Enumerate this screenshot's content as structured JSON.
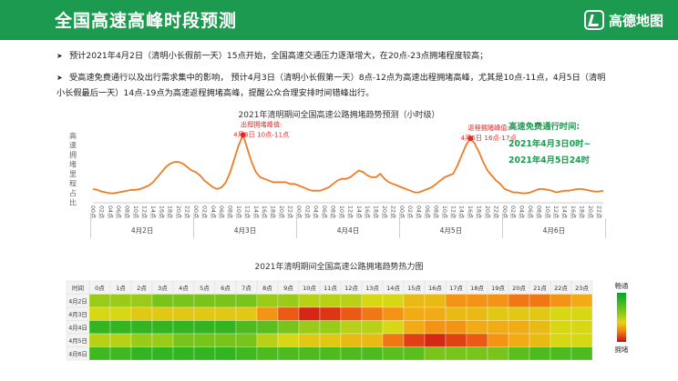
{
  "page": {
    "title": "全国高速高峰时段预测",
    "brand": "高德地图",
    "bullets": [
      "预计2021年4月2日（清明小长假前一天）15点开始，全国高速交通压力逐渐增大，在20点-23点拥堵程度较高；",
      "受高速免费通行以及出行需求集中的影响， 预计4月3日（清明小长假第一天）8点-12点为高速出程拥堵高峰，尤其是10点-11点，4月5日（清明",
      "小长假最后一天）14点-19点为高速返程拥堵高峰，提醒公众合理安排时间错峰出行。"
    ],
    "free_pass_note": [
      "高速免费通行时间:",
      "2021年4月3日0时~",
      "2021年4月5日24时"
    ]
  },
  "colors": {
    "header": "#1b9a50",
    "line": "#ef7b24",
    "peak_label": "#e02a2a",
    "note": "#1b9a50"
  },
  "chart_data": [
    {
      "type": "line",
      "title": "2021年清明期间全国高速公路拥堵趋势预测（小时级）",
      "ylabel": "高速拥堵里程占比",
      "x_tick_labels": [
        "00点",
        "02点",
        "04点",
        "06点",
        "08点",
        "10点",
        "12点",
        "14点",
        "16点",
        "18点",
        "20点",
        "22点"
      ],
      "date_groups": [
        "4月2日",
        "4月3日",
        "4月4日",
        "4月5日",
        "4月6日"
      ],
      "series": [
        {
          "values": [
            [
              6,
              5.5,
              4.5,
              4,
              3.5,
              3.5,
              4,
              4.5,
              5,
              5.5,
              5.5,
              6,
              7,
              8,
              10,
              13,
              16,
              19,
              21,
              22,
              22,
              21,
              19,
              17
            ],
            [
              16,
              14,
              11,
              9,
              7,
              6,
              7,
              10,
              16,
              24,
              32,
              38,
              30,
              22,
              16,
              13,
              12,
              11,
              10,
              10,
              10,
              10,
              9,
              9
            ],
            [
              8,
              7,
              6,
              5,
              5,
              5,
              6,
              7,
              9,
              11,
              12,
              12,
              13,
              15,
              17,
              16,
              14,
              13,
              13,
              15,
              12,
              10,
              9,
              8
            ],
            [
              7,
              6,
              5,
              4,
              4,
              5,
              6,
              7,
              9,
              11,
              13,
              14,
              15,
              20,
              26,
              32,
              36,
              33,
              28,
              22,
              17,
              14,
              11,
              9
            ],
            [
              6,
              5,
              4,
              4,
              3.5,
              3.5,
              4,
              5,
              6,
              6,
              5.5,
              5,
              4,
              4.5,
              5,
              5,
              5.5,
              6,
              6,
              5.5,
              5,
              4.5,
              4.5,
              5
            ]
          ]
        }
      ],
      "peak_annotations": [
        {
          "title": "出程拥堵峰值:",
          "text": "4月3日  10点-11点"
        },
        {
          "title": "返程拥堵峰值:",
          "text": "4月5日  16点-17点"
        }
      ]
    },
    {
      "type": "heatmap",
      "title": "2021年清明期间全国高速公路拥堵趋势热力图",
      "corner_label": "时间",
      "columns": [
        "0点",
        "1点",
        "2点",
        "3点",
        "4点",
        "5点",
        "6点",
        "7点",
        "8点",
        "9点",
        "10点",
        "11点",
        "12点",
        "13点",
        "14点",
        "15点",
        "16点",
        "17点",
        "18点",
        "19点",
        "20点",
        "21点",
        "22点",
        "23点"
      ],
      "rows": [
        "4月2日",
        "4月3日",
        "4月4日",
        "4月5日",
        "4月6日"
      ],
      "values": [
        [
          0.45,
          0.45,
          0.45,
          0.4,
          0.4,
          0.4,
          0.4,
          0.4,
          0.45,
          0.45,
          0.5,
          0.5,
          0.5,
          0.55,
          0.55,
          0.65,
          0.65,
          0.75,
          0.75,
          0.75,
          0.8,
          0.8,
          0.75,
          0.7
        ],
        [
          0.55,
          0.55,
          0.6,
          0.6,
          0.6,
          0.6,
          0.6,
          0.6,
          0.75,
          0.85,
          0.95,
          0.92,
          0.85,
          0.8,
          0.75,
          0.7,
          0.7,
          0.65,
          0.65,
          0.6,
          0.6,
          0.6,
          0.55,
          0.55
        ],
        [
          0.2,
          0.2,
          0.2,
          0.2,
          0.2,
          0.2,
          0.2,
          0.3,
          0.35,
          0.4,
          0.45,
          0.45,
          0.5,
          0.5,
          0.55,
          0.7,
          0.75,
          0.75,
          0.7,
          0.7,
          0.7,
          0.65,
          0.55,
          0.55
        ],
        [
          0.5,
          0.5,
          0.45,
          0.45,
          0.4,
          0.4,
          0.4,
          0.4,
          0.5,
          0.55,
          0.6,
          0.6,
          0.65,
          0.65,
          0.8,
          0.9,
          0.95,
          0.9,
          0.85,
          0.75,
          0.7,
          0.65,
          0.55,
          0.55
        ],
        [
          0.25,
          0.25,
          0.2,
          0.2,
          0.2,
          0.2,
          0.2,
          0.25,
          0.3,
          0.3,
          0.3,
          0.3,
          0.3,
          0.3,
          0.35,
          0.35,
          0.4,
          0.4,
          0.4,
          0.4,
          0.35,
          0.3,
          0.3,
          0.3
        ]
      ],
      "legend_top": "畅通",
      "legend_bottom": "拥堵"
    }
  ]
}
